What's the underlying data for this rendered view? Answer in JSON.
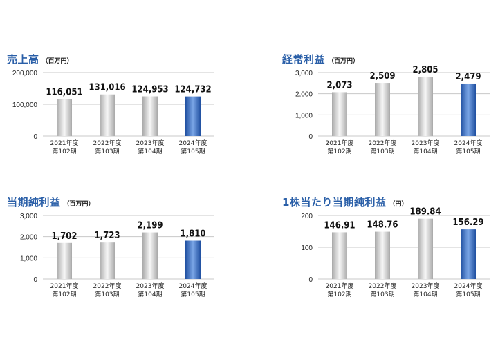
{
  "charts": [
    {
      "title": "売上高",
      "unit": "（百万円）",
      "chart_data": {
        "type": "bar",
        "categories": [
          "2021年度|第102期",
          "2022年度|第103期",
          "2023年度|第104期",
          "2024年度|第105期"
        ],
        "values": [
          116051,
          131016,
          124953,
          124732
        ],
        "value_labels": [
          "116,051",
          "131,016",
          "124,953",
          "124,732"
        ],
        "yticks": [
          0,
          100000,
          200000
        ],
        "ytick_labels": [
          "0",
          "100,000",
          "200,000"
        ],
        "ylim": [
          0,
          200000
        ],
        "highlight_index": 3
      }
    },
    {
      "title": "経常利益",
      "unit": "（百万円）",
      "chart_data": {
        "type": "bar",
        "categories": [
          "2021年度|第102期",
          "2022年度|第103期",
          "2023年度|第104期",
          "2024年度|第105期"
        ],
        "values": [
          2073,
          2509,
          2805,
          2479
        ],
        "value_labels": [
          "2,073",
          "2,509",
          "2,805",
          "2,479"
        ],
        "yticks": [
          0,
          1000,
          2000,
          3000
        ],
        "ytick_labels": [
          "0",
          "1,000",
          "2,000",
          "3,000"
        ],
        "ylim": [
          0,
          3000
        ],
        "highlight_index": 3
      }
    },
    {
      "title": "当期純利益",
      "unit": "（百万円）",
      "chart_data": {
        "type": "bar",
        "categories": [
          "2021年度|第102期",
          "2022年度|第103期",
          "2023年度|第104期",
          "2024年度|第105期"
        ],
        "values": [
          1702,
          1723,
          2199,
          1810
        ],
        "value_labels": [
          "1,702",
          "1,723",
          "2,199",
          "1,810"
        ],
        "yticks": [
          0,
          1000,
          2000,
          3000
        ],
        "ytick_labels": [
          "0",
          "1,000",
          "2,000",
          "3,000"
        ],
        "ylim": [
          0,
          3000
        ],
        "highlight_index": 3
      }
    },
    {
      "title": "1株当たり当期純利益",
      "unit": "（円）",
      "chart_data": {
        "type": "bar",
        "categories": [
          "2021年度|第102期",
          "2022年度|第103期",
          "2023年度|第104期",
          "2024年度|第105期"
        ],
        "values": [
          146.91,
          148.76,
          189.84,
          156.29
        ],
        "value_labels": [
          "146.91",
          "148.76",
          "189.84",
          "156.29"
        ],
        "yticks": [
          0,
          100,
          200
        ],
        "ytick_labels": [
          "0",
          "100",
          "200"
        ],
        "ylim": [
          0,
          200
        ],
        "highlight_index": 3
      }
    }
  ],
  "colors": {
    "title": "#2a5fa8",
    "bar_gray_light": "#f7f7f7",
    "bar_gray_dark": "#a9a9a9",
    "bar_blue_light": "#7aa6e6",
    "bar_blue_dark": "#1f4fa0",
    "grid": "#c8c8c8"
  }
}
